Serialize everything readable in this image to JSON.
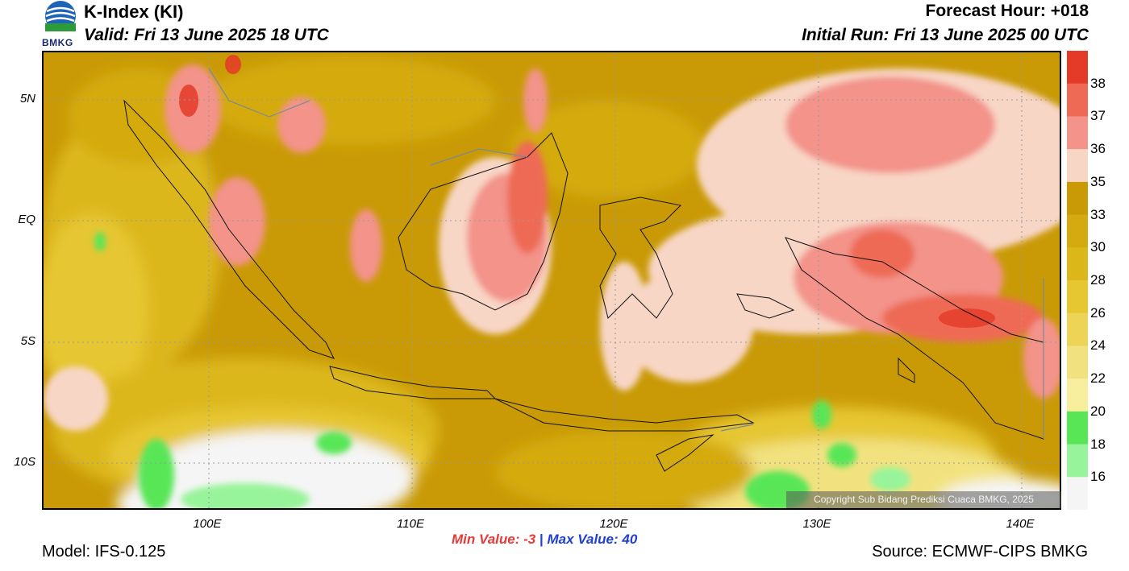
{
  "header": {
    "title": "K-Index (KI)",
    "valid": "Valid: Fri 13 June 2025 18 UTC",
    "forecast_hour": "Forecast Hour: +018",
    "initial_run": "Initial Run: Fri 13 June 2025 00 UTC",
    "logo_text": "BMKG"
  },
  "map": {
    "lat_labels": [
      "5N",
      "EQ",
      "5S",
      "10S"
    ],
    "lon_labels": [
      "100E",
      "110E",
      "120E",
      "130E",
      "140E"
    ],
    "copyright": "Copyright Sub Bidang Prediksi Cuaca BMKG, 2025"
  },
  "colorbar": {
    "labels": [
      "38",
      "37",
      "36",
      "35",
      "33",
      "30",
      "28",
      "26",
      "24",
      "22",
      "20",
      "18",
      "16"
    ],
    "colors": [
      "#e43a28",
      "#ee6a55",
      "#f3938a",
      "#f8d6c6",
      "#c99a06",
      "#d4aa10",
      "#dcb71a",
      "#e6c631",
      "#eed456",
      "#f2e27f",
      "#f7ee9e",
      "#58e656",
      "#98f49a",
      "#f5f5f5"
    ]
  },
  "stats": {
    "min_label": "Min Value:",
    "min_value": "-3",
    "separator": "|",
    "max_label": "Max Value:",
    "max_value": "40"
  },
  "footer": {
    "model": "Model: IFS-0.125",
    "source": "Source: ECMWF-CIPS BMKG"
  }
}
